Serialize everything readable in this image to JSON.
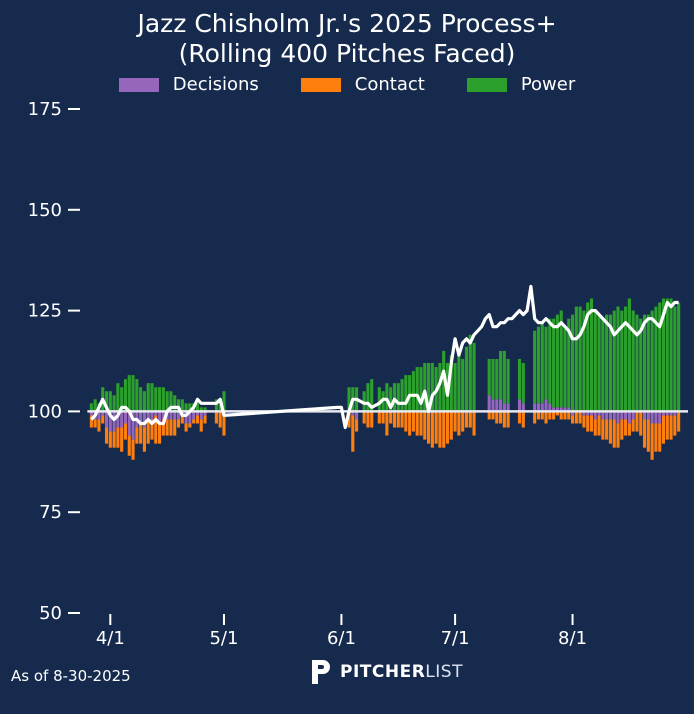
{
  "chart_data": {
    "type": "bar",
    "title_line1": "Jazz Chisholm Jr.'s 2025 Process+",
    "title_line2": "(Rolling 400 Pitches Faced)",
    "legend": [
      {
        "name": "Decisions",
        "color": "#9467bd"
      },
      {
        "name": "Contact",
        "color": "#ff7f0e"
      },
      {
        "name": "Power",
        "color": "#2ca02c"
      }
    ],
    "ylim": [
      50,
      175
    ],
    "y_ticks": [
      "175",
      "150",
      "125",
      "100",
      "75",
      "50"
    ],
    "y_tick_values": [
      175,
      150,
      125,
      100,
      75,
      50
    ],
    "x_ticks": [
      "4/1",
      "5/1",
      "6/1",
      "7/1",
      "8/1"
    ],
    "x_tick_days": [
      0,
      30,
      61,
      91,
      122
    ],
    "baseline": 100,
    "colors": {
      "decisions": "#9467bd",
      "contact": "#ff7f0e",
      "power": "#2ca02c",
      "line": "#ffffff",
      "background": "#162a4e"
    },
    "stacked_series": {
      "day": [
        -5,
        -4,
        -3,
        -2,
        -1,
        0,
        1,
        2,
        3,
        4,
        5,
        6,
        7,
        8,
        9,
        10,
        11,
        12,
        13,
        14,
        15,
        16,
        17,
        18,
        19,
        20,
        21,
        22,
        23,
        24,
        25,
        26,
        27,
        28,
        29,
        30,
        63,
        64,
        65,
        67,
        68,
        69,
        71,
        72,
        73,
        74,
        75,
        76,
        77,
        78,
        79,
        80,
        81,
        82,
        83,
        84,
        85,
        86,
        87,
        88,
        89,
        90,
        91,
        92,
        93,
        94,
        95,
        96,
        100,
        101,
        102,
        103,
        104,
        105,
        108,
        109,
        112,
        113,
        114,
        115,
        116,
        117,
        118,
        119,
        120,
        121,
        122,
        123,
        124,
        125,
        126,
        127,
        128,
        129,
        130,
        131,
        132,
        133,
        134,
        135,
        136,
        137,
        138,
        139,
        140,
        141,
        142,
        143,
        144,
        145,
        146,
        147,
        148,
        149,
        150
      ],
      "decisions": [
        -1,
        -2,
        -2,
        -1,
        -4,
        -5,
        -5,
        -4,
        -4,
        -3,
        -6,
        -7,
        -4,
        -3,
        -4,
        -2,
        -2,
        -1,
        -3,
        -2,
        -2,
        -2,
        -2,
        -2,
        -1,
        -3,
        -3,
        -2,
        -1,
        -2,
        -1,
        0,
        0,
        0,
        0,
        0,
        0,
        -1,
        -2,
        0,
        0,
        0,
        0,
        0,
        0,
        0,
        0,
        0,
        0,
        0,
        0,
        0,
        0,
        0,
        0,
        0,
        0,
        0,
        0,
        0,
        0,
        0,
        0,
        0,
        0,
        0,
        0,
        0,
        4,
        3,
        3,
        3,
        2,
        2,
        3,
        2,
        2,
        2,
        2,
        3,
        2,
        1,
        1,
        1,
        1,
        1,
        -1,
        0,
        0,
        -1,
        -1,
        -1,
        -2,
        -1,
        -2,
        -2,
        -2,
        -2,
        -3,
        -2,
        -2,
        -3,
        -2,
        0,
        0,
        -2,
        -2,
        -3,
        -3,
        -3,
        -1,
        -1,
        -1,
        -1,
        0,
        1,
        2,
        3,
        4
      ],
      "contact": [
        -3,
        -2,
        -3,
        -2,
        -4,
        -4,
        -4,
        -5,
        -6,
        -4,
        -5,
        -5,
        -4,
        -5,
        -6,
        -6,
        -5,
        -7,
        -5,
        -4,
        -4,
        -4,
        -4,
        -2,
        -2,
        -2,
        -1,
        -1,
        -2,
        -3,
        -2,
        0,
        0,
        -3,
        -4,
        -6,
        -4,
        -9,
        -3,
        -3,
        -4,
        -4,
        -3,
        -3,
        -6,
        -3,
        -4,
        -4,
        -4,
        -5,
        -6,
        -5,
        -6,
        -6,
        -7,
        -8,
        -9,
        -8,
        -9,
        -9,
        -8,
        -7,
        -5,
        -6,
        -5,
        -4,
        -4,
        -6,
        -2,
        -2,
        -3,
        -3,
        -4,
        -4,
        -3,
        -4,
        -3,
        -2,
        -2,
        -3,
        -2,
        -2,
        -1,
        -2,
        -2,
        -2,
        -2,
        -3,
        -3,
        -3,
        -4,
        -4,
        -4,
        -5,
        -5,
        -5,
        -6,
        -7,
        -6,
        -5,
        -4,
        -3,
        -3,
        -5,
        -6,
        -7,
        -8,
        -9,
        -7,
        -7,
        -7,
        -6,
        -6,
        -5,
        -5,
        -4,
        -3,
        -2,
        -2
      ],
      "power": [
        2,
        3,
        2,
        6,
        5,
        5,
        4,
        7,
        6,
        8,
        9,
        9,
        8,
        6,
        5,
        7,
        7,
        6,
        6,
        6,
        5,
        5,
        4,
        3,
        3,
        2,
        2,
        2,
        2,
        1,
        1,
        0,
        0,
        3,
        3,
        5,
        6,
        6,
        6,
        5,
        7,
        8,
        6,
        5,
        7,
        6,
        7,
        7,
        8,
        9,
        9,
        10,
        11,
        11,
        12,
        12,
        12,
        11,
        12,
        15,
        12,
        14,
        12,
        14,
        13,
        16,
        19,
        17,
        9,
        10,
        10,
        12,
        13,
        11,
        10,
        10,
        18,
        19,
        20,
        18,
        21,
        22,
        23,
        24,
        20,
        22,
        24,
        26,
        26,
        25,
        27,
        28,
        25,
        24,
        23,
        24,
        24,
        25,
        26,
        25,
        26,
        28,
        25,
        24,
        23,
        24,
        24,
        25,
        26,
        27,
        28,
        28,
        28,
        26,
        27
      ]
    },
    "rolling_line": {
      "day": [
        -5,
        -4,
        -3,
        -2,
        -1,
        0,
        1,
        2,
        3,
        4,
        5,
        6,
        7,
        8,
        9,
        10,
        11,
        12,
        13,
        14,
        15,
        16,
        17,
        18,
        19,
        20,
        21,
        22,
        23,
        24,
        25,
        26,
        27,
        28,
        29,
        30,
        60,
        61,
        62,
        63,
        64,
        65,
        67,
        68,
        69,
        71,
        72,
        73,
        74,
        75,
        76,
        77,
        78,
        79,
        80,
        81,
        82,
        83,
        84,
        85,
        86,
        87,
        88,
        89,
        90,
        91,
        92,
        93,
        94,
        95,
        96,
        97,
        98,
        99,
        100,
        101,
        102,
        103,
        104,
        105,
        106,
        107,
        108,
        109,
        110,
        111,
        112,
        113,
        114,
        115,
        116,
        117,
        118,
        119,
        120,
        121,
        122,
        123,
        124,
        125,
        126,
        127,
        128,
        129,
        130,
        131,
        132,
        133,
        134,
        135,
        136,
        137,
        138,
        139,
        140,
        141,
        142,
        143,
        144,
        145,
        146,
        147,
        148,
        149,
        150
      ],
      "value": [
        98,
        99,
        101,
        103,
        101,
        99,
        98,
        99,
        101,
        101,
        100,
        98,
        98,
        97,
        97,
        98,
        97,
        98,
        97,
        97,
        100,
        101,
        101,
        101,
        99,
        99,
        100,
        101,
        103,
        102,
        102,
        102,
        102,
        102,
        103,
        99,
        101,
        101,
        96,
        100,
        103,
        103,
        102,
        102,
        101,
        102,
        103,
        103,
        101,
        103,
        102,
        102,
        102,
        104,
        104,
        104,
        102,
        105,
        100,
        104,
        105,
        107,
        110,
        104,
        112,
        118,
        114,
        117,
        118,
        117,
        119,
        120,
        121,
        123,
        124,
        121,
        121,
        122,
        122,
        123,
        123,
        124,
        125,
        124,
        125,
        131,
        123,
        122,
        122,
        123,
        122,
        121,
        121,
        122,
        121,
        120,
        118,
        118,
        119,
        121,
        124,
        125,
        125,
        124,
        123,
        122,
        121,
        119,
        120,
        121,
        122,
        121,
        120,
        119,
        120,
        122,
        123,
        123,
        122,
        121,
        124,
        127,
        126,
        127,
        127
      ]
    },
    "x_day_range": [
      -8,
      153
    ]
  },
  "footer": {
    "as_of": "As of 8-30-2025",
    "brand_bold": "PITCHER",
    "brand_light": "LIST"
  }
}
